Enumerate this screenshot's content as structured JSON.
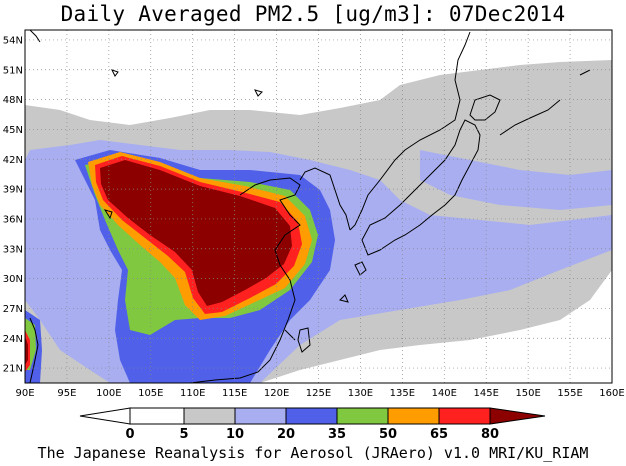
{
  "title": "Daily Averaged PM2.5 [ug/m3]: 07Dec2014",
  "footer": "The Japanese Reanalysis for Aerosol (JRAero) v1.0 MRI/KU_RIAM",
  "map": {
    "lon_range": [
      90,
      160
    ],
    "lat_range": [
      19.5,
      55
    ],
    "lon_ticks": [
      "90E",
      "95E",
      "100E",
      "105E",
      "110E",
      "115E",
      "120E",
      "125E",
      "130E",
      "135E",
      "140E",
      "145E",
      "150E",
      "155E",
      "160E"
    ],
    "lat_ticks": [
      "21N",
      "24N",
      "27N",
      "30N",
      "33N",
      "36N",
      "39N",
      "42N",
      "45N",
      "48N",
      "51N",
      "54N"
    ],
    "lat_values": [
      21,
      24,
      27,
      30,
      33,
      36,
      39,
      42,
      45,
      48,
      51,
      54
    ],
    "grid": true
  },
  "colorbar": {
    "labels": [
      "0",
      "5",
      "10",
      "20",
      "35",
      "50",
      "65",
      "80"
    ],
    "colors": [
      "#ffffff",
      "#c8c8c8",
      "#a8aef0",
      "#5060e8",
      "#80c840",
      "#ff9c00",
      "#ff2020",
      "#8c0000"
    ]
  }
}
